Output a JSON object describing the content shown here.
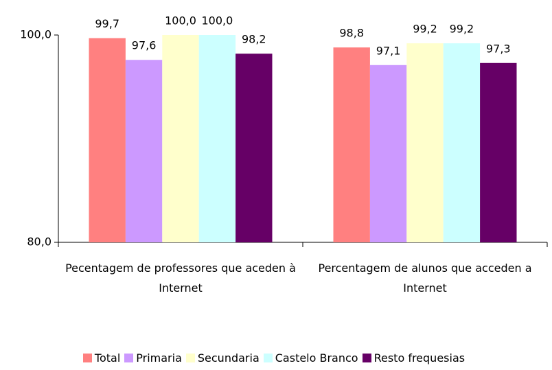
{
  "chart_data": {
    "type": "bar",
    "categories": [
      "Pecentagem de professores que aceden à Internet",
      "Percentagem de alunos que acceden a Internet"
    ],
    "series": [
      {
        "name": "Total",
        "color": "#ff8080",
        "values": [
          99.7,
          98.8
        ],
        "value_labels": [
          "99,7",
          "98,8"
        ]
      },
      {
        "name": "Primaria",
        "color": "#cc99ff",
        "values": [
          97.6,
          97.1
        ],
        "value_labels": [
          "97,6",
          "97,1"
        ]
      },
      {
        "name": "Secundaria",
        "color": "#ffffcc",
        "values": [
          100,
          99.2
        ],
        "value_labels": [
          "100,0",
          "99,2"
        ]
      },
      {
        "name": "Castelo Branco",
        "color": "#ccffff",
        "values": [
          100,
          99.2
        ],
        "value_labels": [
          "100,0",
          "99,2"
        ]
      },
      {
        "name": "Resto frequesias",
        "color": "#660066",
        "values": [
          98.2,
          97.3
        ],
        "value_labels": [
          "98,2",
          "97,3"
        ]
      }
    ],
    "ylim": [
      80,
      100
    ],
    "yticks": [
      {
        "value": 80,
        "label": "80,0"
      },
      {
        "value": 100,
        "label": "100,0"
      }
    ],
    "grid": false,
    "legend": "bottom"
  }
}
